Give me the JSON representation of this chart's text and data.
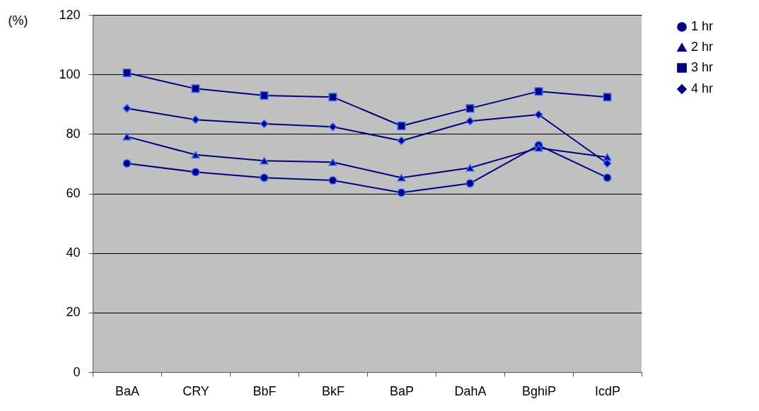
{
  "chart_data": {
    "type": "line",
    "ylabel": "(%)",
    "categories": [
      "BaA",
      "CRY",
      "BbF",
      "BkF",
      "BaP",
      "DahA",
      "BghiP",
      "IcdP"
    ],
    "ylim": [
      0,
      120
    ],
    "yticks": [
      0,
      20,
      40,
      60,
      80,
      100,
      120
    ],
    "grid": "y",
    "legend": "right",
    "line_style": "solid",
    "series": [
      {
        "name": "1 hr",
        "color": "#000080",
        "marker": "circle",
        "values": [
          70.1,
          67.2,
          65.3,
          64.4,
          60.3,
          63.4,
          76.2,
          65.3
        ]
      },
      {
        "name": "2 hr",
        "color": "#000080",
        "marker": "triangle",
        "values": [
          79.1,
          73,
          71,
          70.5,
          65.3,
          68.6,
          75.3,
          72.2
        ]
      },
      {
        "name": "3 hr",
        "color": "#000080",
        "marker": "square",
        "values": [
          100.5,
          95.2,
          92.9,
          92.4,
          82.7,
          88.6,
          94.3,
          92.4
        ]
      },
      {
        "name": "4 hr",
        "color": "#000080",
        "marker": "diamond",
        "values": [
          88.6,
          84.8,
          83.4,
          82.4,
          77.7,
          84.3,
          86.5,
          70.1
        ]
      }
    ]
  }
}
